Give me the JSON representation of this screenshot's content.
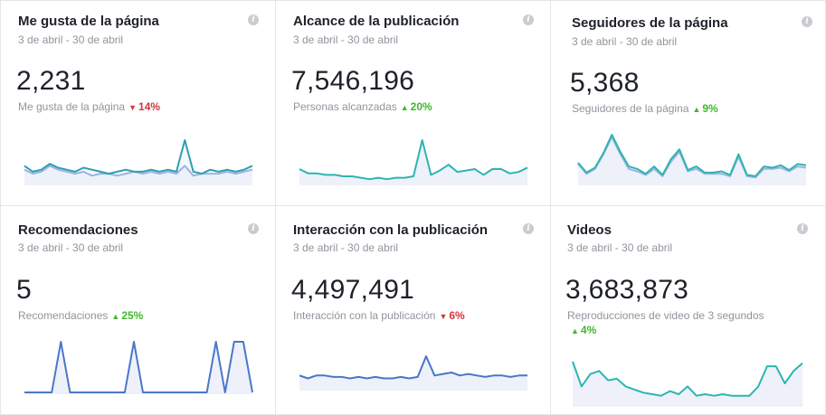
{
  "cards": [
    {
      "title": "Me gusta de la página",
      "date": "3 de abril - 30 de abril",
      "value": "2,231",
      "metric": "Me gusta de la página",
      "delta": "14%",
      "direction": "down",
      "line_color": "#2d9fb1",
      "series": [
        {
          "color": "#4a76c8",
          "values": [
            7,
            5,
            6,
            9,
            7,
            6,
            5,
            6,
            4,
            5,
            5,
            4,
            5,
            6,
            5,
            6,
            5,
            6,
            5,
            9,
            4,
            5,
            5,
            5,
            6,
            5,
            6,
            7
          ]
        },
        {
          "color": "#2d9fb1",
          "values": [
            9,
            6,
            7,
            10,
            8,
            7,
            6,
            8,
            7,
            6,
            5,
            6,
            7,
            6,
            6,
            7,
            6,
            7,
            6,
            22,
            6,
            5,
            7,
            6,
            7,
            6,
            7,
            9
          ]
        }
      ]
    },
    {
      "title": "Alcance de la publicación",
      "date": "3 de abril - 30 de abril",
      "value": "7,546,196",
      "metric": "Personas alcanzadas",
      "delta": "20%",
      "direction": "up",
      "series": [
        {
          "color": "#2db5b1",
          "values": [
            10,
            7,
            7,
            6,
            6,
            5,
            5,
            4,
            3,
            4,
            3,
            4,
            4,
            5,
            30,
            6,
            9,
            13,
            8,
            9,
            10,
            6,
            10,
            10,
            7,
            8,
            11
          ]
        }
      ]
    },
    {
      "title": "Seguidores de la página",
      "date": "3 de abril - 30 de abril",
      "value": "5,368",
      "metric": "Seguidores de la página",
      "delta": "9%",
      "direction": "up",
      "series": [
        {
          "color": "#4a76c8",
          "values": [
            16,
            8,
            12,
            24,
            38,
            24,
            12,
            10,
            7,
            12,
            6,
            18,
            26,
            10,
            12,
            8,
            8,
            8,
            6,
            22,
            6,
            5,
            12,
            12,
            13,
            10,
            14,
            13
          ]
        },
        {
          "color": "#2db5b1",
          "values": [
            17,
            9,
            13,
            25,
            40,
            26,
            14,
            12,
            8,
            14,
            7,
            20,
            28,
            11,
            14,
            9,
            9,
            10,
            7,
            24,
            7,
            6,
            14,
            13,
            15,
            11,
            16,
            15
          ]
        }
      ]
    },
    {
      "title": "Recomendaciones",
      "date": "3 de abril - 30 de abril",
      "value": "5",
      "metric": "Recomendaciones",
      "delta": "25%",
      "direction": "up",
      "series": [
        {
          "color": "#4a76c8",
          "values": [
            0,
            0,
            0,
            0,
            1,
            0,
            0,
            0,
            0,
            0,
            0,
            0,
            1,
            0,
            0,
            0,
            0,
            0,
            0,
            0,
            0,
            1,
            0,
            1,
            1,
            0
          ]
        }
      ]
    },
    {
      "title": "Interacción con la publicación",
      "date": "3 de abril - 30 de abril",
      "value": "4,497,491",
      "metric": "Interacción con la publicación",
      "delta": "6%",
      "direction": "down",
      "series": [
        {
          "color": "#4a76c8",
          "values": [
            9,
            7,
            9,
            9,
            8,
            8,
            7,
            8,
            7,
            8,
            7,
            7,
            8,
            7,
            8,
            22,
            9,
            10,
            11,
            9,
            10,
            9,
            8,
            9,
            9,
            8,
            9,
            9
          ]
        }
      ]
    },
    {
      "title": "Videos",
      "date": "3 de abril - 30 de abril",
      "value": "3,683,873",
      "metric": "Reproducciones de video de 3 segundos",
      "delta": "4%",
      "direction": "up",
      "series": [
        {
          "color": "#2db5b1",
          "values": [
            28,
            12,
            20,
            22,
            16,
            17,
            12,
            10,
            8,
            7,
            6,
            9,
            7,
            12,
            6,
            7,
            6,
            7,
            6,
            6,
            6,
            12,
            25,
            25,
            14,
            22,
            27
          ]
        }
      ]
    }
  ],
  "icons": {
    "info": "info-icon"
  },
  "info_glyph": "i"
}
